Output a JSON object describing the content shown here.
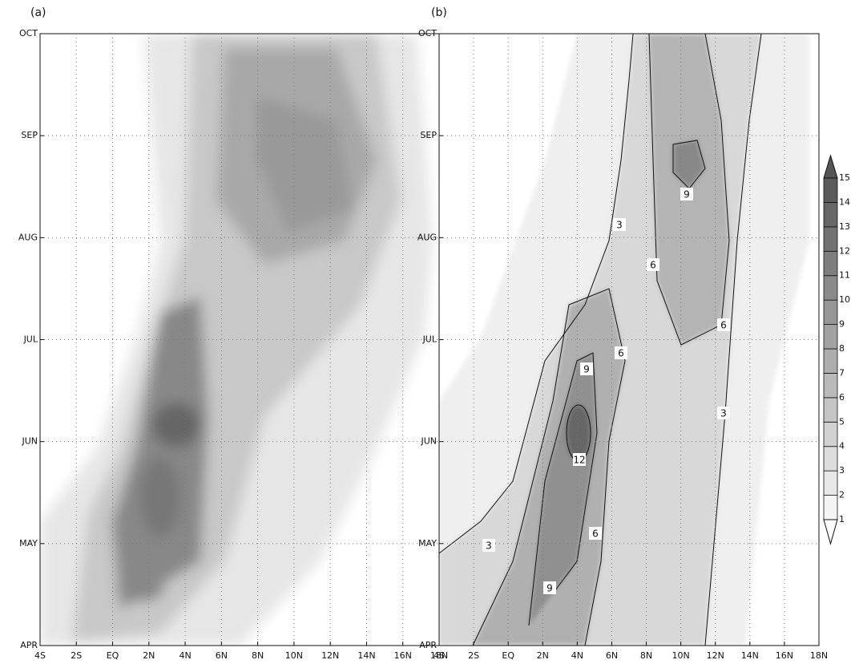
{
  "panels": [
    {
      "label": "(a)",
      "x_labels": [
        "4S",
        "2S",
        "EQ",
        "2N",
        "4N",
        "6N",
        "8N",
        "10N",
        "12N",
        "14N",
        "16N",
        "18N"
      ],
      "y_labels": [
        "OCT",
        "SEP",
        "AUG",
        "JUL",
        "JUN",
        "MAY",
        "APR"
      ]
    },
    {
      "label": "(b)",
      "x_labels": [
        "4S",
        "2S",
        "EQ",
        "2N",
        "4N",
        "6N",
        "8N",
        "10N",
        "12N",
        "14N",
        "16N",
        "18N"
      ],
      "y_labels": [
        "OCT",
        "SEP",
        "AUG",
        "JUL",
        "JUN",
        "MAY",
        "APR"
      ],
      "contour_labels": [
        "3",
        "3",
        "3",
        "6",
        "6",
        "6",
        "6",
        "9",
        "9",
        "9",
        "12"
      ]
    }
  ],
  "colorbar": {
    "levels": [
      1,
      2,
      3,
      4,
      5,
      6,
      7,
      8,
      9,
      10,
      11,
      12,
      13,
      14,
      15
    ]
  }
}
